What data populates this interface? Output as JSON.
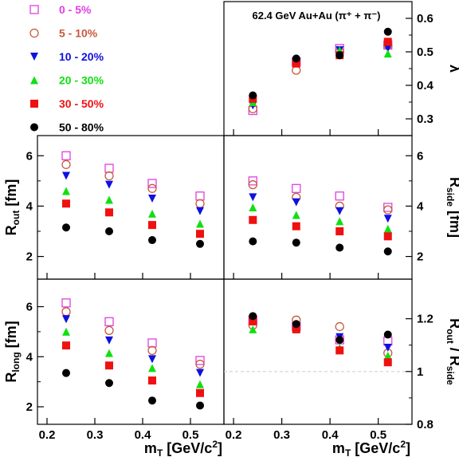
{
  "chart_data": {
    "type": "scatter",
    "title": "62.4 GeV Au+Au (π⁺ + π⁻)",
    "x_ticks": [
      0.2,
      0.3,
      0.4,
      0.5
    ],
    "xlabel": "m_T [GeV/c^2]",
    "xlim": [
      0.18,
      0.57
    ],
    "x": [
      0.24,
      0.33,
      0.42,
      0.52
    ],
    "series": [
      {
        "name": "0 - 5%",
        "color": "#e040e0",
        "marker": "open-square"
      },
      {
        "name": "5 - 10%",
        "color": "#c85a3c",
        "marker": "open-circle"
      },
      {
        "name": "10 - 20%",
        "color": "#1010e0",
        "marker": "down-triangle"
      },
      {
        "name": "20 - 30%",
        "color": "#10e010",
        "marker": "up-triangle"
      },
      {
        "name": "30 - 50%",
        "color": "#f01010",
        "marker": "filled-square"
      },
      {
        "name": "50 - 80%",
        "color": "#000000",
        "marker": "filled-circle"
      }
    ],
    "panels": [
      {
        "id": "lambda",
        "ylabel": "λ",
        "ylim": [
          0.25,
          0.65
        ],
        "y_ticks": [
          0.3,
          0.4,
          0.5,
          0.6
        ],
        "values": [
          [
            0.325,
            0.47,
            0.51,
            0.52
          ],
          [
            0.33,
            0.445,
            0.5,
            0.52
          ],
          [
            0.34,
            0.465,
            0.505,
            0.51
          ],
          [
            0.35,
            0.47,
            0.505,
            0.495
          ],
          [
            0.36,
            0.465,
            0.49,
            0.53
          ],
          [
            0.37,
            0.48,
            0.49,
            0.56
          ]
        ]
      },
      {
        "id": "rout",
        "ylabel": "R_out [fm]",
        "ylim": [
          1.1,
          6.8
        ],
        "y_ticks": [
          2,
          4,
          6
        ],
        "values": [
          [
            6.0,
            5.5,
            4.9,
            4.4
          ],
          [
            5.65,
            5.2,
            4.7,
            4.1
          ],
          [
            5.2,
            4.85,
            4.3,
            3.8
          ],
          [
            4.6,
            4.25,
            3.7,
            3.3
          ],
          [
            4.1,
            3.75,
            3.25,
            2.9
          ],
          [
            3.15,
            3.0,
            2.65,
            2.5
          ]
        ]
      },
      {
        "id": "rside",
        "ylabel": "R_side [fm]",
        "ylim": [
          1.1,
          6.8
        ],
        "y_ticks": [
          2,
          4,
          6
        ],
        "values": [
          [
            5.0,
            4.7,
            4.4,
            3.95
          ],
          [
            4.85,
            4.35,
            4.0,
            3.85
          ],
          [
            4.35,
            4.15,
            3.8,
            3.5
          ],
          [
            3.95,
            3.65,
            3.4,
            3.1
          ],
          [
            3.45,
            3.2,
            3.0,
            2.8
          ],
          [
            2.6,
            2.55,
            2.35,
            2.2
          ]
        ]
      },
      {
        "id": "rlong",
        "ylabel": "R_long [fm]",
        "ylim": [
          1.3,
          7.1
        ],
        "y_ticks": [
          2,
          4,
          6
        ],
        "values": [
          [
            6.15,
            5.4,
            4.55,
            3.85
          ],
          [
            5.8,
            5.05,
            4.25,
            3.7
          ],
          [
            5.5,
            4.65,
            3.9,
            3.35
          ],
          [
            5.0,
            4.15,
            3.55,
            2.9
          ],
          [
            4.45,
            3.65,
            3.05,
            2.55
          ],
          [
            3.35,
            2.95,
            2.25,
            2.05
          ]
        ]
      },
      {
        "id": "ratio",
        "ylabel": "R_out / R_side",
        "ylim": [
          0.8,
          1.35
        ],
        "y_ticks": [
          0.8,
          1.0,
          1.2
        ],
        "reference_line": 1.0,
        "values": [
          [
            1.195,
            1.17,
            1.12,
            1.115
          ],
          [
            1.175,
            1.195,
            1.17,
            1.07
          ],
          [
            1.195,
            1.17,
            1.13,
            1.09
          ],
          [
            1.16,
            1.16,
            1.09,
            1.06
          ],
          [
            1.19,
            1.16,
            1.08,
            1.035
          ],
          [
            1.21,
            1.18,
            1.12,
            1.14
          ]
        ]
      }
    ]
  }
}
